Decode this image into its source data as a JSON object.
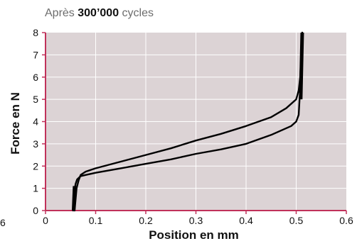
{
  "chart_data": {
    "type": "line",
    "title_prefix": "Après",
    "title_bold": "300’000",
    "title_suffix": "cycles",
    "xlabel": "Position en mm",
    "ylabel": "Force en N",
    "xlim": [
      0,
      0.6
    ],
    "ylim": [
      0,
      8
    ],
    "x_ticks": [
      "0",
      "0.1",
      "0.2",
      "0.3",
      "0.4",
      "0.5",
      "0.6"
    ],
    "y_ticks": [
      "0",
      "1",
      "2",
      "3",
      "4",
      "5",
      "6",
      "7",
      "8"
    ],
    "left_edge_label": "6",
    "grid": true,
    "plot_background": "#dcd3d5",
    "axis_color": "#c0315a",
    "line_color": "#000000",
    "series": [
      {
        "x": [
          0.055,
          0.056,
          0.057,
          0.058,
          0.06,
          0.063,
          0.07,
          0.08,
          0.1,
          0.15,
          0.2,
          0.25,
          0.3,
          0.35,
          0.4,
          0.45,
          0.49,
          0.5,
          0.505,
          0.508,
          0.51,
          0.512
        ],
        "y": [
          0.0,
          0.3,
          0.65,
          0.95,
          1.2,
          1.4,
          1.55,
          1.6,
          1.7,
          1.9,
          2.1,
          2.3,
          2.55,
          2.75,
          3.0,
          3.4,
          3.8,
          4.0,
          4.3,
          5.5,
          7.0,
          8.0
        ]
      },
      {
        "x": [
          0.058,
          0.06,
          0.062,
          0.066,
          0.07,
          0.08,
          0.1,
          0.15,
          0.2,
          0.25,
          0.3,
          0.35,
          0.4,
          0.45,
          0.48,
          0.5,
          0.505,
          0.508,
          0.51,
          0.512
        ],
        "y": [
          0.0,
          0.5,
          1.0,
          1.35,
          1.6,
          1.75,
          1.9,
          2.2,
          2.5,
          2.8,
          3.15,
          3.45,
          3.8,
          4.2,
          4.6,
          5.0,
          5.4,
          6.0,
          7.0,
          8.0
        ]
      }
    ]
  }
}
